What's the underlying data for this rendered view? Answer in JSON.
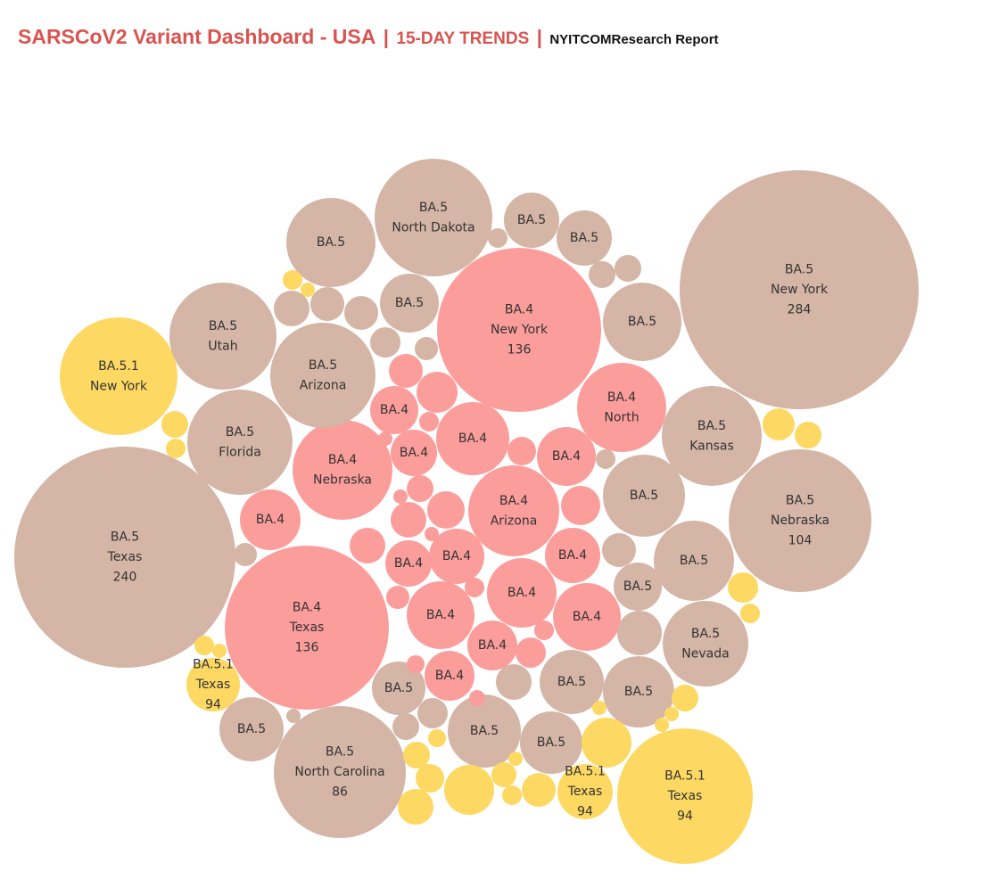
{
  "header": {
    "title": "SARSCoV2 Variant Dashboard - USA",
    "separator": "|",
    "subtitle": "15-DAY TRENDS",
    "source": "NYITCOMResearch Report"
  },
  "chart_data": {
    "type": "packed-bubble",
    "title": "SARSCoV2 Variant Dashboard - USA | 15-DAY TRENDS | NYITCOMResearch Report",
    "legend": "none",
    "colors": {
      "BA.5": "#d4b5a6",
      "BA.4": "#fb9d9b",
      "BA.5.1": "#fdd963"
    },
    "bubbles": [
      {
        "variant": "BA.5",
        "state": "New York",
        "value": 284,
        "label": [
          "BA.5",
          "New York",
          "284"
        ]
      },
      {
        "variant": "BA.5",
        "state": "Texas",
        "value": 240,
        "label": [
          "BA.5",
          "Texas",
          "240"
        ]
      },
      {
        "variant": "BA.4",
        "state": "New York",
        "value": 136,
        "label": [
          "BA.4",
          "New York",
          "136"
        ]
      },
      {
        "variant": "BA.4",
        "state": "Texas",
        "value": 136,
        "label": [
          "BA.4",
          "Texas",
          "136"
        ]
      },
      {
        "variant": "BA.5",
        "state": "Nebraska",
        "value": 104,
        "label": [
          "BA.5",
          "Nebraska",
          "104"
        ]
      },
      {
        "variant": "BA.5.1",
        "state": "Texas",
        "value": 94,
        "label": [
          "BA.5.1",
          "Texas",
          "94"
        ]
      },
      {
        "variant": "BA.5",
        "state": "North Carolina",
        "value": 86,
        "label": [
          "BA.5",
          "North Carolina",
          "86"
        ]
      },
      {
        "variant": "BA.5",
        "state": "North Dakota",
        "value": 68,
        "label": [
          "BA.5",
          "North Dakota"
        ]
      },
      {
        "variant": "BA.4",
        "state": "Nebraska",
        "value": 52,
        "label": [
          "BA.4",
          "Nebraska"
        ]
      },
      {
        "variant": "BA.4",
        "state": "Arizona",
        "value": 49,
        "label": [
          "BA.4",
          "Arizona"
        ]
      },
      {
        "variant": "BA.5",
        "state": "Arizona",
        "value": 57,
        "label": [
          "BA.5",
          "Arizona"
        ]
      },
      {
        "variant": "BA.5.1",
        "state": "New York",
        "value": 56,
        "label": [
          "BA.5.1",
          "New York"
        ]
      },
      {
        "variant": "BA.5",
        "state": "Utah",
        "value": 55,
        "label": [
          "BA.5",
          "Utah"
        ]
      },
      {
        "variant": "BA.5",
        "state": "Florida",
        "value": 54,
        "label": [
          "BA.5",
          "Florida"
        ]
      },
      {
        "variant": "BA.5",
        "state": "Kansas",
        "value": 49,
        "label": [
          "BA.5",
          "Kansas"
        ]
      },
      {
        "variant": "BA.5",
        "state": "Nevada",
        "value": 37,
        "label": [
          "BA.5",
          "Nevada"
        ]
      },
      {
        "variant": "BA.4",
        "state": "North",
        "value": 39,
        "label": [
          "BA.4",
          "North"
        ]
      },
      {
        "variant": "BA.5",
        "value": 41,
        "label": [
          "BA.5"
        ]
      },
      {
        "variant": "BA.5",
        "value": 32,
        "label": [
          "BA.5"
        ]
      },
      {
        "variant": "BA.4",
        "value": 26,
        "label": [
          "BA.4"
        ]
      },
      {
        "variant": "BA.4",
        "value": 22,
        "label": [
          "BA.4"
        ]
      }
    ],
    "note": "Approximately 120 bubbles in total; unlabeled small bubbles are drawn without text."
  }
}
